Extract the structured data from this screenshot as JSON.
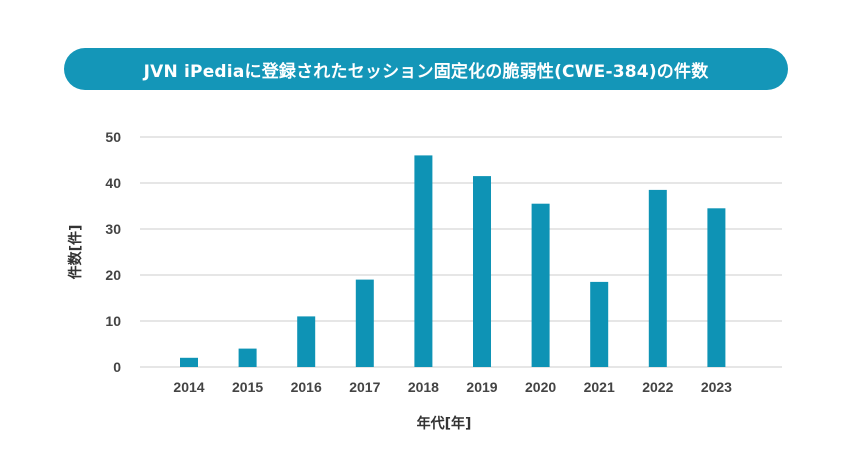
{
  "chart_data": {
    "type": "bar",
    "title": "JVN iPediaに登録されたセッション固定化の脆弱性(CWE-384)の件数",
    "xlabel": "年代[年]",
    "ylabel": "件数[件]",
    "categories": [
      "2014",
      "2015",
      "2016",
      "2017",
      "2018",
      "2019",
      "2020",
      "2021",
      "2022",
      "2023"
    ],
    "values": [
      2,
      4,
      11,
      19,
      46,
      41.5,
      35.5,
      18.5,
      38.5,
      34.5
    ],
    "ylim": [
      0,
      50
    ],
    "yticks": [
      "0",
      "10",
      "20",
      "30",
      "40",
      "50"
    ],
    "grid": true,
    "legend": "none",
    "colors": {
      "bar": "#0e93b5",
      "title_bg": "#1496b8",
      "grid": "#cccccc"
    }
  }
}
